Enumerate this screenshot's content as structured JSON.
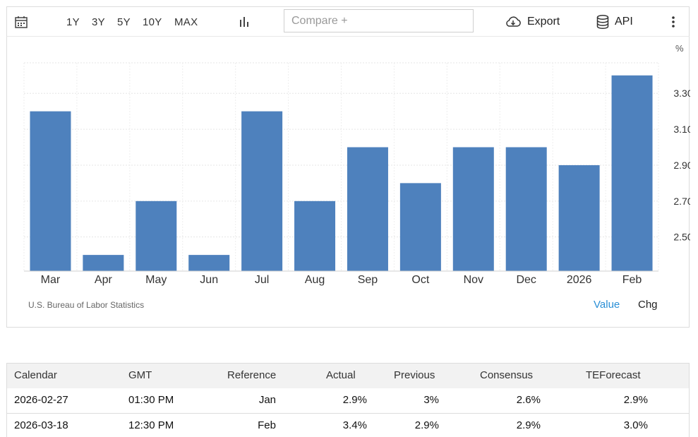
{
  "toolbar": {
    "ranges": [
      "1Y",
      "3Y",
      "5Y",
      "10Y",
      "MAX"
    ],
    "compare_placeholder": "Compare +",
    "export_label": "Export",
    "api_label": "API"
  },
  "chart_data": {
    "type": "bar",
    "categories": [
      "Mar",
      "Apr",
      "May",
      "Jun",
      "Jul",
      "Aug",
      "Sep",
      "Oct",
      "Nov",
      "Dec",
      "2026",
      "Feb"
    ],
    "values": [
      3.2,
      2.4,
      2.7,
      2.4,
      3.2,
      2.7,
      3.0,
      2.8,
      3.0,
      3.0,
      2.9,
      3.4
    ],
    "ylim": [
      2.31,
      3.47
    ],
    "yticks": [
      "2.50",
      "2.70",
      "2.90",
      "3.10",
      "3.30"
    ],
    "yunit": "%",
    "y_axis_side": "right",
    "grid": true,
    "color": "#4e81bd"
  },
  "source": "U.S. Bureau of Labor Statistics",
  "view_options": {
    "value": "Value",
    "chg": "Chg",
    "active_color": "#2a8fd6"
  },
  "calendar": {
    "headers": [
      "Calendar",
      "GMT",
      "Reference",
      "Actual",
      "Previous",
      "Consensus",
      "TEForecast"
    ],
    "rows": [
      [
        "2026-02-27",
        "01:30 PM",
        "Jan",
        "2.9%",
        "3%",
        "2.6%",
        "2.9%"
      ],
      [
        "2026-03-18",
        "12:30 PM",
        "Feb",
        "3.4%",
        "2.9%",
        "2.9%",
        "3.0%"
      ]
    ]
  }
}
